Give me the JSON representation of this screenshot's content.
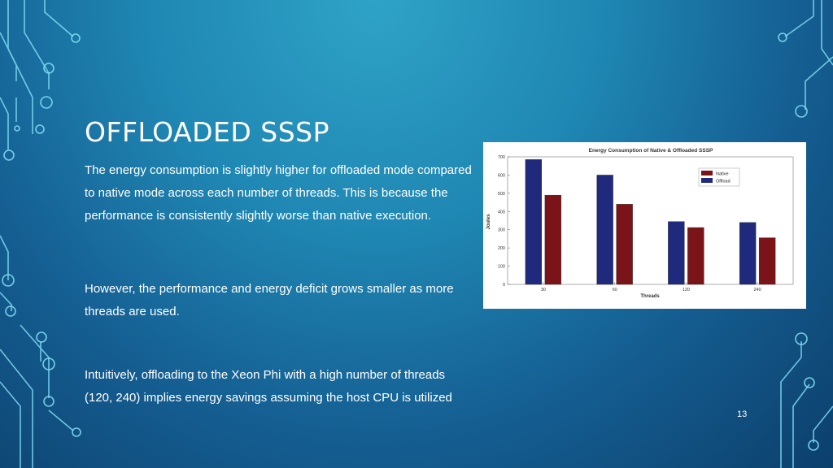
{
  "slide": {
    "title": "OFFLOADED SSSP",
    "paragraphs": [
      "The energy consumption is slightly higher for offloaded mode compared to native mode across each number of threads. This is because the performance is consistently slightly worse than native execution.",
      "However, the performance and energy deficit grows smaller as more threads are used.",
      "Intuitively, offloading to the Xeon Phi with a high number of threads (120, 240) implies energy savings assuming the host CPU is utilized"
    ],
    "page_number": "13"
  },
  "chart_data": {
    "type": "bar",
    "title": "Energy Consumption of Native & Offloaded SSSP",
    "xlabel": "Threads",
    "ylabel": "Joules",
    "categories": [
      "30",
      "60",
      "120",
      "240"
    ],
    "series": [
      {
        "name": "Offload",
        "color": "#1f2a7c",
        "values": [
          685,
          600,
          345,
          340
        ]
      },
      {
        "name": "Native",
        "color": "#7a1419",
        "values": [
          490,
          440,
          312,
          256
        ]
      }
    ],
    "ylim": [
      0,
      700
    ],
    "yticks": [
      0,
      100,
      200,
      300,
      400,
      500,
      600,
      700
    ],
    "legend": {
      "placement": "top-right",
      "order": [
        "Native",
        "Offload"
      ]
    },
    "grid": false
  },
  "colors": {
    "background": "#1a7aa8",
    "text": "#ffffff",
    "decoration": "#6fd3ee"
  }
}
